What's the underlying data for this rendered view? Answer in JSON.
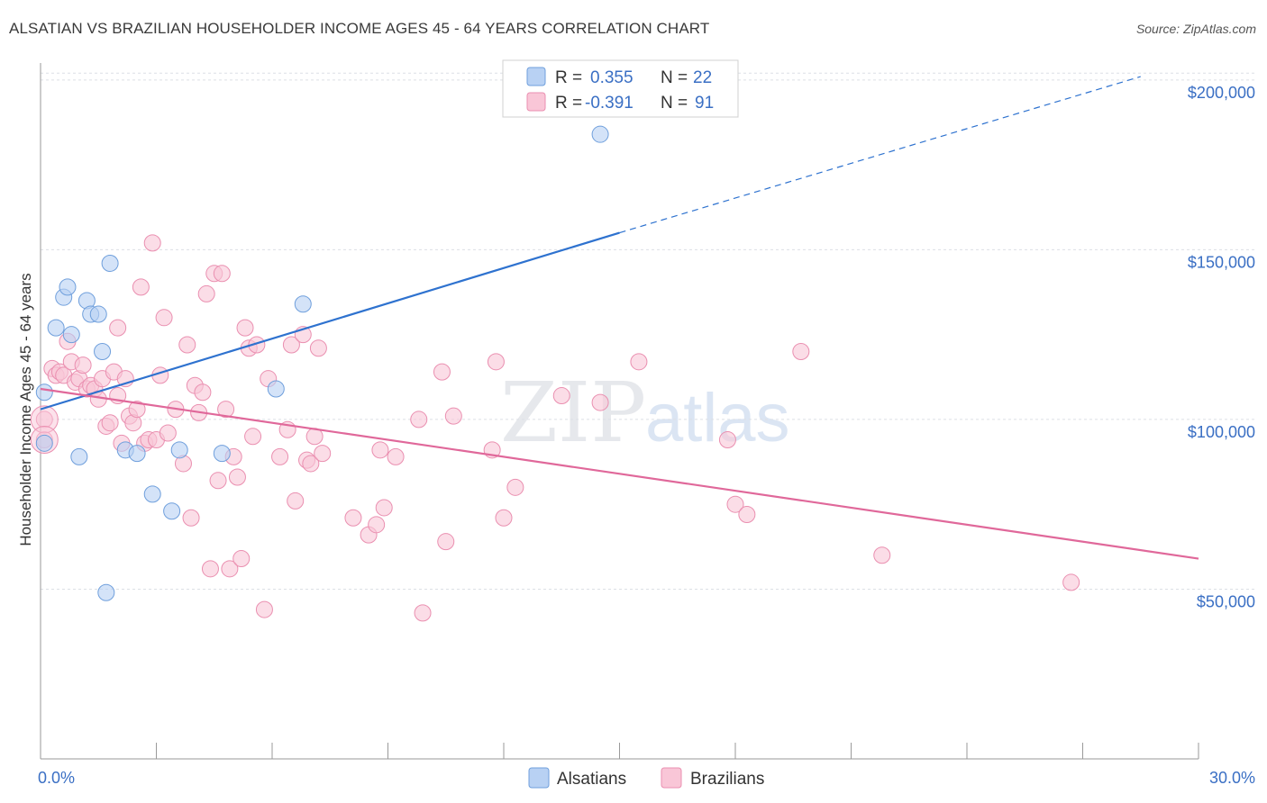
{
  "header": {
    "title": "ALSATIAN VS BRAZILIAN HOUSEHOLDER INCOME AGES 45 - 64 YEARS CORRELATION CHART",
    "source": "Source: ZipAtlas.com"
  },
  "colors": {
    "alsatians_fill": "#b8d1f3",
    "alsatians_stroke": "#6f9fdc",
    "alsatians_line": "#2e72cf",
    "brazilians_fill": "#f9c6d7",
    "brazilians_stroke": "#ea8fb0",
    "brazilians_line": "#e0689a",
    "tick_text": "#3a6fc4"
  },
  "legend": {
    "rows": [
      {
        "r_label": "R =",
        "r_value": "0.355",
        "n_label": "N =",
        "n_value": "22"
      },
      {
        "r_label": "R =",
        "r_value": "-0.391",
        "n_label": "N =",
        "n_value": "91"
      }
    ]
  },
  "watermark": {
    "zip": "ZIP",
    "atlas": "atlas"
  },
  "chart_data": {
    "type": "scatter",
    "title": "ALSATIAN VS BRAZILIAN HOUSEHOLDER INCOME AGES 45 - 64 YEARS CORRELATION CHART",
    "xlabel": "",
    "ylabel": "Householder Income Ages 45 - 64 years",
    "xlim": [
      0,
      30
    ],
    "ylim": [
      0,
      205000
    ],
    "x_tick_labels": [
      "0.0%",
      "30.0%"
    ],
    "y_ticks": [
      50000,
      100000,
      150000,
      200000
    ],
    "y_tick_labels": [
      "$50,000",
      "$100,000",
      "$150,000",
      "$200,000"
    ],
    "grid": true,
    "legend_position": "top-center",
    "series": [
      {
        "name": "Alsatians",
        "points": [
          [
            0.1,
            108000
          ],
          [
            0.1,
            93000
          ],
          [
            0.4,
            127000
          ],
          [
            0.6,
            136000
          ],
          [
            0.7,
            139000
          ],
          [
            0.8,
            125000
          ],
          [
            1.0,
            89000
          ],
          [
            1.2,
            135000
          ],
          [
            1.3,
            131000
          ],
          [
            1.5,
            131000
          ],
          [
            1.6,
            120000
          ],
          [
            1.7,
            49000
          ],
          [
            1.8,
            146000
          ],
          [
            2.2,
            91000
          ],
          [
            2.5,
            90000
          ],
          [
            2.9,
            78000
          ],
          [
            3.4,
            73000
          ],
          [
            3.6,
            91000
          ],
          [
            4.7,
            90000
          ],
          [
            6.1,
            109000
          ],
          [
            6.8,
            134000
          ],
          [
            14.5,
            184000
          ]
        ],
        "trend": {
          "x": [
            0,
            15
          ],
          "y": [
            103000,
            155000
          ]
        },
        "trend_extended": {
          "x": [
            15,
            28.5
          ],
          "y": [
            155000,
            201000
          ]
        }
      },
      {
        "name": "Brazilians",
        "points": [
          [
            0.1,
            100000
          ],
          [
            0.1,
            94000
          ],
          [
            0.3,
            115000
          ],
          [
            0.4,
            113000
          ],
          [
            0.5,
            114000
          ],
          [
            0.6,
            113000
          ],
          [
            0.7,
            123000
          ],
          [
            0.8,
            117000
          ],
          [
            0.9,
            111000
          ],
          [
            1.0,
            112000
          ],
          [
            1.1,
            116000
          ],
          [
            1.2,
            109000
          ],
          [
            1.3,
            110000
          ],
          [
            1.4,
            109000
          ],
          [
            1.5,
            106000
          ],
          [
            1.6,
            112000
          ],
          [
            1.7,
            98000
          ],
          [
            1.8,
            99000
          ],
          [
            1.9,
            114000
          ],
          [
            2.0,
            107000
          ],
          [
            2.0,
            127000
          ],
          [
            2.1,
            93000
          ],
          [
            2.2,
            112000
          ],
          [
            2.3,
            101000
          ],
          [
            2.4,
            99000
          ],
          [
            2.5,
            103000
          ],
          [
            2.6,
            139000
          ],
          [
            2.7,
            93000
          ],
          [
            2.8,
            94000
          ],
          [
            2.9,
            152000
          ],
          [
            3.0,
            94000
          ],
          [
            3.1,
            113000
          ],
          [
            3.2,
            130000
          ],
          [
            3.3,
            96000
          ],
          [
            3.5,
            103000
          ],
          [
            3.7,
            87000
          ],
          [
            3.8,
            122000
          ],
          [
            3.9,
            71000
          ],
          [
            4.0,
            110000
          ],
          [
            4.1,
            102000
          ],
          [
            4.2,
            108000
          ],
          [
            4.3,
            137000
          ],
          [
            4.4,
            56000
          ],
          [
            4.5,
            143000
          ],
          [
            4.6,
            82000
          ],
          [
            4.7,
            143000
          ],
          [
            4.8,
            103000
          ],
          [
            4.9,
            56000
          ],
          [
            5.0,
            89000
          ],
          [
            5.1,
            83000
          ],
          [
            5.2,
            59000
          ],
          [
            5.3,
            127000
          ],
          [
            5.4,
            121000
          ],
          [
            5.5,
            95000
          ],
          [
            5.6,
            122000
          ],
          [
            5.8,
            44000
          ],
          [
            5.9,
            112000
          ],
          [
            6.2,
            89000
          ],
          [
            6.4,
            97000
          ],
          [
            6.5,
            122000
          ],
          [
            6.6,
            76000
          ],
          [
            6.8,
            125000
          ],
          [
            6.9,
            88000
          ],
          [
            7.0,
            87000
          ],
          [
            7.1,
            95000
          ],
          [
            7.2,
            121000
          ],
          [
            7.3,
            90000
          ],
          [
            8.1,
            71000
          ],
          [
            8.5,
            66000
          ],
          [
            8.7,
            69000
          ],
          [
            8.8,
            91000
          ],
          [
            8.9,
            74000
          ],
          [
            9.2,
            89000
          ],
          [
            9.8,
            100000
          ],
          [
            9.9,
            43000
          ],
          [
            10.4,
            114000
          ],
          [
            10.5,
            64000
          ],
          [
            10.7,
            101000
          ],
          [
            11.7,
            91000
          ],
          [
            11.8,
            117000
          ],
          [
            12.0,
            71000
          ],
          [
            12.3,
            80000
          ],
          [
            13.5,
            107000
          ],
          [
            14.5,
            105000
          ],
          [
            15.5,
            117000
          ],
          [
            17.8,
            94000
          ],
          [
            18.0,
            75000
          ],
          [
            18.3,
            72000
          ],
          [
            19.7,
            120000
          ],
          [
            21.8,
            60000
          ],
          [
            26.7,
            52000
          ]
        ],
        "trend": {
          "x": [
            0,
            30
          ],
          "y": [
            109000,
            59000
          ]
        }
      }
    ]
  }
}
